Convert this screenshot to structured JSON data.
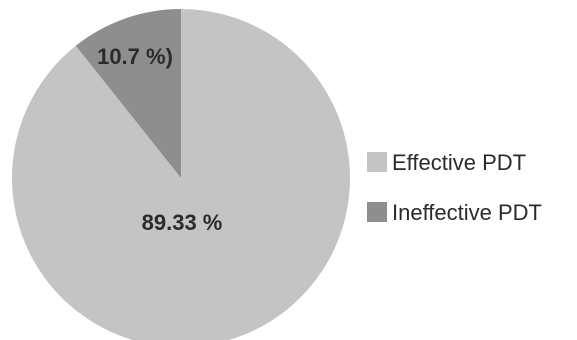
{
  "chart_data": {
    "type": "pie",
    "title": "",
    "start_angle_deg": 0,
    "direction": "clockwise",
    "slices": [
      {
        "name": "Effective PDT",
        "value": 89.33,
        "label": "89.33 %",
        "color": "#c4c4c4"
      },
      {
        "name": "Ineffective PDT",
        "value": 10.7,
        "label": "10.7 %)",
        "color": "#8e8e8e"
      }
    ],
    "legend": {
      "placement": "right",
      "entries": [
        "Effective PDT",
        "Ineffective PDT"
      ]
    }
  }
}
